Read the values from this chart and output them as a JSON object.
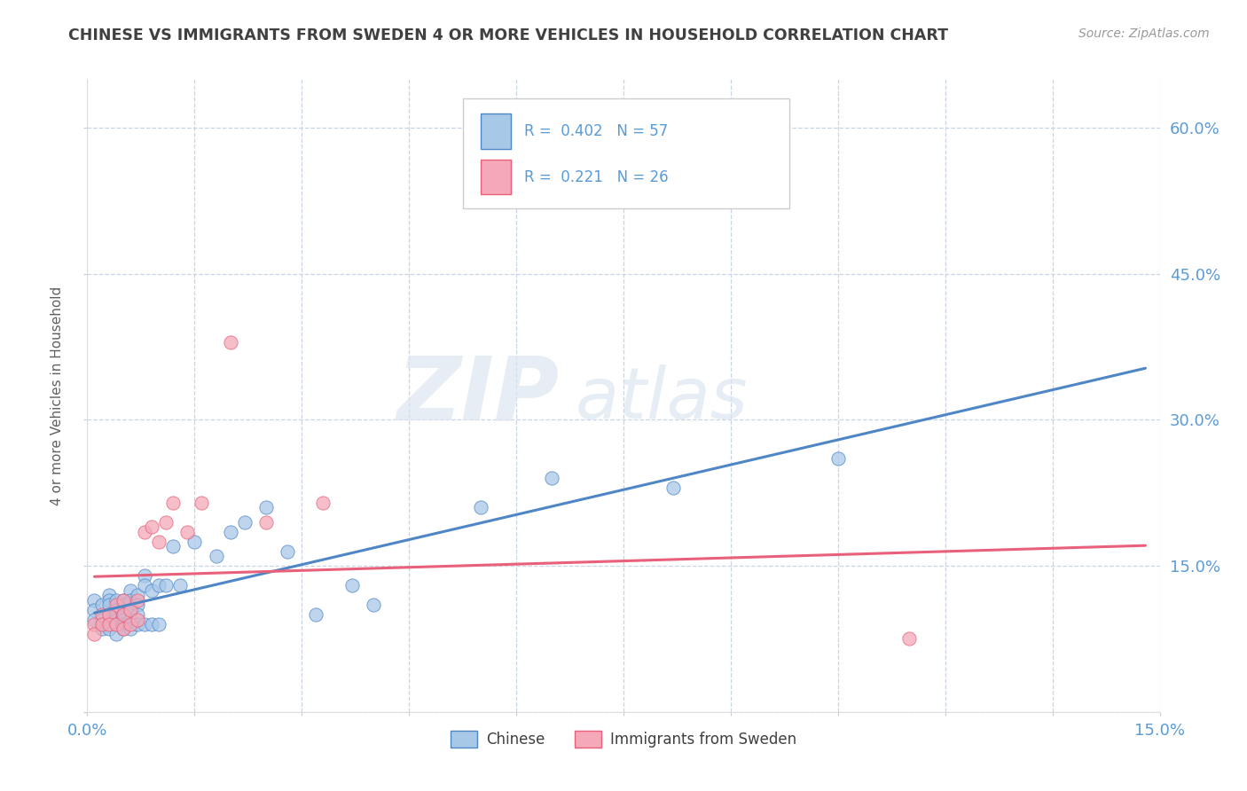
{
  "title": "CHINESE VS IMMIGRANTS FROM SWEDEN 4 OR MORE VEHICLES IN HOUSEHOLD CORRELATION CHART",
  "source": "Source: ZipAtlas.com",
  "ylabel": "4 or more Vehicles in Household",
  "xlim": [
    0.0,
    0.15
  ],
  "ylim": [
    0.0,
    0.65
  ],
  "xticks": [
    0.0,
    0.015,
    0.03,
    0.045,
    0.06,
    0.075,
    0.09,
    0.105,
    0.12,
    0.135,
    0.15
  ],
  "xticklabels": [
    "0.0%",
    "",
    "",
    "",
    "",
    "",
    "",
    "",
    "",
    "",
    "15.0%"
  ],
  "yticks": [
    0.0,
    0.15,
    0.3,
    0.45,
    0.6
  ],
  "yticklabels_right": [
    "",
    "15.0%",
    "30.0%",
    "45.0%",
    "60.0%"
  ],
  "chinese_R": "0.402",
  "chinese_N": "57",
  "sweden_R": "0.221",
  "sweden_N": "26",
  "chinese_color": "#a8c8e8",
  "sweden_color": "#f4a8b8",
  "chinese_line_color": "#4f86c6",
  "sweden_line_color": "#e8607a",
  "watermark_zip": "ZIP",
  "watermark_atlas": "atlas",
  "legend_labels": [
    "Chinese",
    "Immigrants from Sweden"
  ],
  "chinese_x": [
    0.001,
    0.001,
    0.001,
    0.002,
    0.002,
    0.002,
    0.002,
    0.003,
    0.003,
    0.003,
    0.003,
    0.003,
    0.003,
    0.004,
    0.004,
    0.004,
    0.004,
    0.004,
    0.004,
    0.005,
    0.005,
    0.005,
    0.005,
    0.005,
    0.005,
    0.006,
    0.006,
    0.006,
    0.006,
    0.006,
    0.007,
    0.007,
    0.007,
    0.007,
    0.008,
    0.008,
    0.008,
    0.009,
    0.009,
    0.01,
    0.01,
    0.011,
    0.012,
    0.013,
    0.015,
    0.018,
    0.02,
    0.022,
    0.025,
    0.028,
    0.032,
    0.037,
    0.04,
    0.055,
    0.065,
    0.082,
    0.105
  ],
  "chinese_y": [
    0.115,
    0.105,
    0.095,
    0.11,
    0.095,
    0.09,
    0.085,
    0.12,
    0.115,
    0.11,
    0.1,
    0.095,
    0.085,
    0.115,
    0.105,
    0.1,
    0.095,
    0.09,
    0.08,
    0.115,
    0.11,
    0.1,
    0.095,
    0.09,
    0.085,
    0.125,
    0.115,
    0.105,
    0.095,
    0.085,
    0.12,
    0.11,
    0.1,
    0.09,
    0.14,
    0.13,
    0.09,
    0.125,
    0.09,
    0.13,
    0.09,
    0.13,
    0.17,
    0.13,
    0.175,
    0.16,
    0.185,
    0.195,
    0.21,
    0.165,
    0.1,
    0.13,
    0.11,
    0.21,
    0.24,
    0.23,
    0.26
  ],
  "sweden_x": [
    0.001,
    0.001,
    0.002,
    0.002,
    0.003,
    0.003,
    0.004,
    0.004,
    0.005,
    0.005,
    0.005,
    0.006,
    0.006,
    0.007,
    0.007,
    0.008,
    0.009,
    0.01,
    0.011,
    0.012,
    0.014,
    0.016,
    0.02,
    0.025,
    0.033,
    0.115
  ],
  "sweden_y": [
    0.09,
    0.08,
    0.1,
    0.09,
    0.1,
    0.09,
    0.11,
    0.09,
    0.115,
    0.1,
    0.085,
    0.105,
    0.09,
    0.115,
    0.095,
    0.185,
    0.19,
    0.175,
    0.195,
    0.215,
    0.185,
    0.215,
    0.38,
    0.195,
    0.215,
    0.075
  ],
  "background_color": "#ffffff",
  "grid_color": "#c8d4e8",
  "title_color": "#404040",
  "axis_tick_color": "#5b9bd5"
}
